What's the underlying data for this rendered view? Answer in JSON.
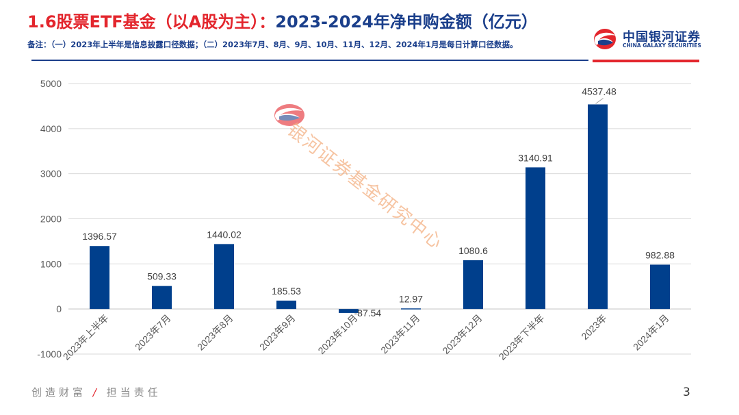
{
  "header": {
    "title_number": "1.6",
    "title_main": "股票ETF基金（以A股为主）：",
    "title_sub": "2023-2024年净申购金额（亿元）",
    "note": "备注：（一）2023年上半年是信息披露口径数据；（二）2023年7月、8月、9月、10月、11月、12月、2024年1月是每日计算口径数据。"
  },
  "logo": {
    "name_cn": "中国银河证券",
    "name_en": "CHINA GALAXY SECURITIES",
    "icon": "galaxy-logo-icon"
  },
  "watermark": {
    "text": "银河证券基金研究中心",
    "icon": "galaxy-logo-icon"
  },
  "footer": {
    "slogan_left": "创造财富",
    "slogan_sep": "/",
    "slogan_right": "担当责任",
    "page_number": "3"
  },
  "colors": {
    "bar": "#003f8c",
    "title_red": "#e3262d",
    "title_blue": "#1b3f8b",
    "grid": "#d9d9d9"
  },
  "chart_data": {
    "type": "bar",
    "categories": [
      "2023年上半年",
      "2023年7月",
      "2023年8月",
      "2023年9月",
      "2023年10月",
      "2023年11月",
      "2023年12月",
      "2023年下半年",
      "2023年",
      "2024年1月"
    ],
    "values": [
      1396.57,
      509.33,
      1440.02,
      185.53,
      -87.54,
      12.97,
      1080.6,
      3140.91,
      4537.48,
      982.88
    ],
    "value_labels": [
      "1396.57",
      "509.33",
      "1440.02",
      "185.53",
      "-87.54",
      "12.97",
      "1080.6",
      "3140.91",
      "4537.48",
      "982.88"
    ],
    "y_ticks": [
      -1000,
      0,
      1000,
      2000,
      3000,
      4000,
      5000
    ],
    "y_tick_labels": [
      "-1000",
      "0",
      "1000",
      "2000",
      "3000",
      "4000",
      "5000"
    ],
    "ylim": [
      -1000,
      5000
    ],
    "grid": true,
    "legend": false,
    "x_label_rotation": "-45deg"
  }
}
